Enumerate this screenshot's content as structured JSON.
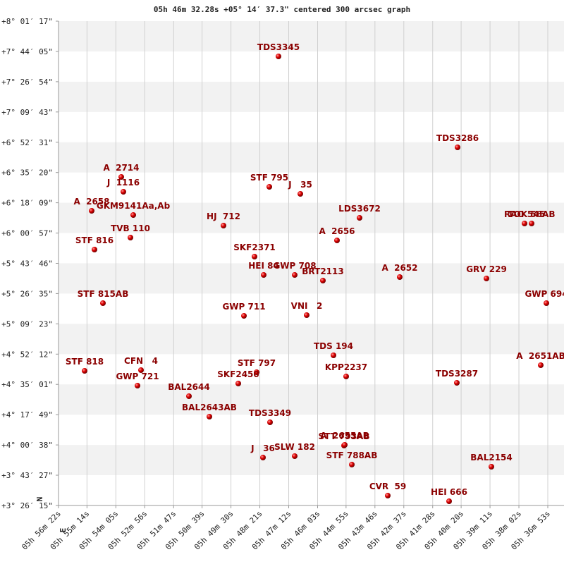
{
  "chart_data": {
    "type": "scatter",
    "title": "05h 46m 32.28s +05° 14′ 37.3\" centered 300 arcsec graph",
    "compass": {
      "north": "N",
      "east": "E"
    },
    "point_color": "#cc0000",
    "label_color": "#8b0000",
    "band_color": "#f2f2f2",
    "grid": true,
    "xlim": [
      5.939444,
      5.614722
    ],
    "xticks": [
      {
        "value": 5.939444,
        "label": "05h 56m 22s"
      },
      {
        "value": 5.920556,
        "label": "05h 55m 14s"
      },
      {
        "value": 5.901389,
        "label": "05h 54m 05s"
      },
      {
        "value": 5.882222,
        "label": "05h 52m 56s"
      },
      {
        "value": 5.863056,
        "label": "05h 51m 47s"
      },
      {
        "value": 5.844167,
        "label": "05h 50m 39s"
      },
      {
        "value": 5.825,
        "label": "05h 49m 30s"
      },
      {
        "value": 5.805833,
        "label": "05h 48m 21s"
      },
      {
        "value": 5.786667,
        "label": "05h 47m 12s"
      },
      {
        "value": 5.7675,
        "label": "05h 46m 03s"
      },
      {
        "value": 5.748611,
        "label": "05h 44m 55s"
      },
      {
        "value": 5.729444,
        "label": "05h 43m 46s"
      },
      {
        "value": 5.710278,
        "label": "05h 42m 37s"
      },
      {
        "value": 5.691111,
        "label": "05h 41m 28s"
      },
      {
        "value": 5.672222,
        "label": "05h 40m 20s"
      },
      {
        "value": 5.653056,
        "label": "05h 39m 11s"
      },
      {
        "value": 5.633889,
        "label": "05h 38m 02s"
      },
      {
        "value": 5.614722,
        "label": "05h 36m 53s"
      }
    ],
    "ylim": [
      3.4375,
      8.0214
    ],
    "yticks": [
      {
        "value": 3.4375,
        "label": "+3° 26′ 15\""
      },
      {
        "value": 3.7242,
        "label": "+3° 43′ 27\""
      },
      {
        "value": 4.0106,
        "label": "+4° 00′ 38\""
      },
      {
        "value": 4.2969,
        "label": "+4° 17′ 49\""
      },
      {
        "value": 4.5836,
        "label": "+4° 35′ 01\""
      },
      {
        "value": 4.87,
        "label": "+4° 52′ 12\""
      },
      {
        "value": 5.1564,
        "label": "+5° 09′ 23\""
      },
      {
        "value": 5.4431,
        "label": "+5° 26′ 35\""
      },
      {
        "value": 5.7294,
        "label": "+5° 43′ 46\""
      },
      {
        "value": 6.0158,
        "label": "+6° 00′ 57\""
      },
      {
        "value": 6.3025,
        "label": "+6° 18′ 09\""
      },
      {
        "value": 6.5889,
        "label": "+6° 35′ 20\""
      },
      {
        "value": 6.8753,
        "label": "+6° 52′ 31\""
      },
      {
        "value": 7.1619,
        "label": "+7° 09′ 43\""
      },
      {
        "value": 7.4483,
        "label": "+7° 26′ 54\""
      },
      {
        "value": 7.7347,
        "label": "+7° 44′ 05\""
      },
      {
        "value": 8.0214,
        "label": "+8° 01′ 17\""
      }
    ],
    "labels": [
      "TDS3345",
      "TDS3286",
      "A  2714",
      "J  1116",
      "STF 795",
      "J   35",
      "A  2658",
      "GKM9141Aa,Ab",
      "HJ  712",
      "LDS3672",
      "RAO 545",
      "TOK 56AB",
      "TVB 110",
      "A  2656",
      "STF 816",
      "SKF2371",
      "HEI 84",
      "GWP 708",
      "BRT2113",
      "A  2652",
      "GRV 229",
      "STF 815AB",
      "GWP 694",
      "GWP 711",
      "VNI   2",
      "TDS 194",
      "STF 818",
      "CFN   4",
      "GWP 721",
      "STF 797",
      "SKF2450",
      "KPP2237",
      "TDS3287",
      "A  2651AB",
      "BAL2644",
      "BAL2643AB",
      "TDS3349",
      "STT 793AB",
      "A  2655AB",
      "J   36",
      "SLW 182",
      "STF 788AB",
      "BAL2154",
      "CVR  59",
      "HEI 666"
    ],
    "x": [
      5.79346,
      5.67461,
      5.8978,
      5.8964,
      5.79954,
      5.77895,
      5.91745,
      5.88984,
      5.82995,
      5.73965,
      5.63016,
      5.62548,
      5.89171,
      5.75462,
      5.91558,
      5.80936,
      5.80328,
      5.78269,
      5.76398,
      5.71298,
      5.65543,
      5.90996,
      5.61565,
      5.81638,
      5.77474,
      5.75696,
      5.92213,
      5.8847,
      5.88704,
      5.80796,
      5.82013,
      5.74854,
      5.67508,
      5.6194,
      5.85288,
      5.83931,
      5.79907,
      5.74994,
      5.74947,
      5.80375,
      5.78269,
      5.74479,
      5.65215,
      5.72093,
      5.68022
    ],
    "y": [
      7.6878,
      6.8271,
      6.5468,
      6.4067,
      6.4534,
      6.3867,
      6.2266,
      6.1865,
      6.0864,
      6.1598,
      6.1065,
      6.1065,
      5.973,
      5.9463,
      5.8596,
      5.7929,
      5.6194,
      5.6194,
      5.566,
      5.5994,
      5.586,
      5.3525,
      5.3525,
      5.2324,
      5.239,
      4.8587,
      4.7119,
      4.7186,
      4.5718,
      4.6986,
      4.5918,
      4.6585,
      4.5985,
      4.7653,
      4.4717,
      4.2782,
      4.2248,
      4.0047,
      4.0113,
      3.8912,
      3.9046,
      3.8245,
      3.8045,
      3.5309,
      3.4775
    ]
  }
}
